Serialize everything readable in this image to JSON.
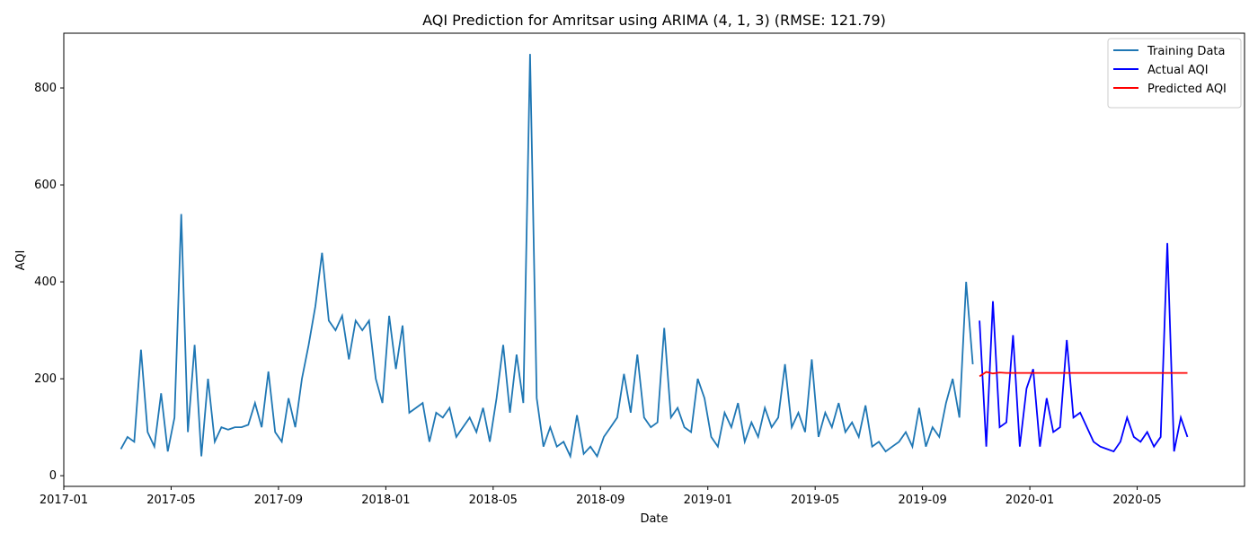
{
  "chart_data": {
    "type": "line",
    "title": "AQI Prediction for Amritsar using ARIMA (4, 1, 3) (RMSE: 121.79)",
    "x_label": "Date",
    "y_label": "AQI",
    "xlim": [
      "2017-01",
      "2020-09"
    ],
    "xticks": [
      "2017-01",
      "2017-05",
      "2017-09",
      "2018-01",
      "2018-05",
      "2018-09",
      "2019-01",
      "2019-05",
      "2019-09",
      "2020-01",
      "2020-05"
    ],
    "ylim": [
      -22,
      913
    ],
    "yticks": [
      0,
      200,
      400,
      600,
      800
    ],
    "legend": "upper right",
    "series": [
      {
        "name": "Training Data",
        "color": "#1f77b4",
        "x": [
          "2017-03",
          "2017-03",
          "2017-03",
          "2017-03",
          "2017-04",
          "2017-04",
          "2017-04",
          "2017-04",
          "2017-05",
          "2017-05",
          "2017-05",
          "2017-05",
          "2017-06",
          "2017-06",
          "2017-06",
          "2017-06",
          "2017-07",
          "2017-07",
          "2017-07",
          "2017-07",
          "2017-08",
          "2017-08",
          "2017-08",
          "2017-08",
          "2017-09",
          "2017-09",
          "2017-09",
          "2017-09",
          "2017-10",
          "2017-10",
          "2017-10",
          "2017-10",
          "2017-11",
          "2017-11",
          "2017-11",
          "2017-11",
          "2017-12",
          "2017-12",
          "2017-12",
          "2017-12",
          "2018-01",
          "2018-01",
          "2018-01",
          "2018-01",
          "2018-02",
          "2018-02",
          "2018-02",
          "2018-02",
          "2018-03",
          "2018-03",
          "2018-03",
          "2018-03",
          "2018-04",
          "2018-04",
          "2018-04",
          "2018-04",
          "2018-05",
          "2018-05",
          "2018-05",
          "2018-05",
          "2018-06",
          "2018-06",
          "2018-06",
          "2018-06",
          "2018-07",
          "2018-07",
          "2018-07",
          "2018-07",
          "2018-08",
          "2018-08",
          "2018-08",
          "2018-08",
          "2018-09",
          "2018-09",
          "2018-09",
          "2018-09",
          "2018-10",
          "2018-10",
          "2018-10",
          "2018-10",
          "2018-11",
          "2018-11",
          "2018-11",
          "2018-11",
          "2018-12",
          "2018-12",
          "2018-12",
          "2018-12",
          "2019-01",
          "2019-01",
          "2019-01",
          "2019-01",
          "2019-02",
          "2019-02",
          "2019-02",
          "2019-02",
          "2019-03",
          "2019-03",
          "2019-03",
          "2019-03",
          "2019-04",
          "2019-04",
          "2019-04",
          "2019-04",
          "2019-05",
          "2019-05",
          "2019-05",
          "2019-05",
          "2019-06",
          "2019-06",
          "2019-06",
          "2019-06",
          "2019-07",
          "2019-07",
          "2019-07",
          "2019-07",
          "2019-08",
          "2019-08",
          "2019-08",
          "2019-08",
          "2019-09",
          "2019-09",
          "2019-09",
          "2019-09",
          "2019-10",
          "2019-10",
          "2019-10",
          "2019-10"
        ],
        "values": [
          55,
          80,
          70,
          260,
          90,
          60,
          170,
          50,
          120,
          540,
          90,
          270,
          40,
          200,
          70,
          100,
          95,
          100,
          100,
          105,
          150,
          100,
          215,
          90,
          70,
          160,
          100,
          200,
          270,
          350,
          460,
          320,
          300,
          330,
          240,
          320,
          300,
          320,
          200,
          150,
          330,
          220,
          310,
          130,
          140,
          150,
          70,
          130,
          120,
          140,
          80,
          100,
          120,
          90,
          140,
          70,
          160,
          270,
          130,
          250,
          150,
          870,
          160,
          60,
          100,
          60,
          70,
          40,
          125,
          45,
          60,
          40,
          80,
          100,
          120,
          210,
          130,
          250,
          120,
          100,
          110,
          305,
          120,
          140,
          100,
          90,
          200,
          160,
          80,
          60,
          130,
          100,
          150,
          70,
          110,
          80,
          140,
          100,
          120,
          230,
          100,
          130,
          90,
          240,
          80,
          130,
          100,
          150,
          90,
          110,
          80,
          145,
          60,
          70,
          50,
          60,
          70,
          90,
          60,
          140,
          60,
          100,
          80,
          150,
          200,
          120,
          400,
          230
        ]
      },
      {
        "name": "Actual AQI",
        "color": "#0000ff",
        "x": [
          "2019-11",
          "2019-11",
          "2019-11",
          "2019-11",
          "2019-12",
          "2019-12",
          "2019-12",
          "2019-12",
          "2020-01",
          "2020-01",
          "2020-01",
          "2020-01",
          "2020-02",
          "2020-02",
          "2020-02",
          "2020-02",
          "2020-03",
          "2020-03",
          "2020-03",
          "2020-03",
          "2020-04",
          "2020-04",
          "2020-04",
          "2020-04",
          "2020-05",
          "2020-05",
          "2020-05",
          "2020-05",
          "2020-06",
          "2020-06",
          "2020-06",
          "2020-06"
        ],
        "values": [
          320,
          60,
          360,
          100,
          110,
          290,
          60,
          180,
          220,
          60,
          160,
          90,
          100,
          280,
          120,
          130,
          100,
          70,
          60,
          55,
          50,
          70,
          120,
          80,
          70,
          90,
          60,
          80,
          480,
          50,
          120,
          80
        ]
      },
      {
        "name": "Predicted AQI",
        "color": "#ff0000",
        "x": [
          "2019-11",
          "2019-11",
          "2019-11",
          "2019-11",
          "2019-12",
          "2019-12",
          "2019-12",
          "2019-12",
          "2020-01",
          "2020-01",
          "2020-01",
          "2020-01",
          "2020-02",
          "2020-02",
          "2020-02",
          "2020-02",
          "2020-03",
          "2020-03",
          "2020-03",
          "2020-03",
          "2020-04",
          "2020-04",
          "2020-04",
          "2020-04",
          "2020-05",
          "2020-05",
          "2020-05",
          "2020-05",
          "2020-06",
          "2020-06",
          "2020-06",
          "2020-06"
        ],
        "values": [
          205,
          214,
          211,
          213,
          212,
          212,
          212,
          212,
          212,
          212,
          212,
          212,
          212,
          212,
          212,
          212,
          212,
          212,
          212,
          212,
          212,
          212,
          212,
          212,
          212,
          212,
          212,
          212,
          212,
          212,
          212,
          212
        ]
      }
    ]
  }
}
